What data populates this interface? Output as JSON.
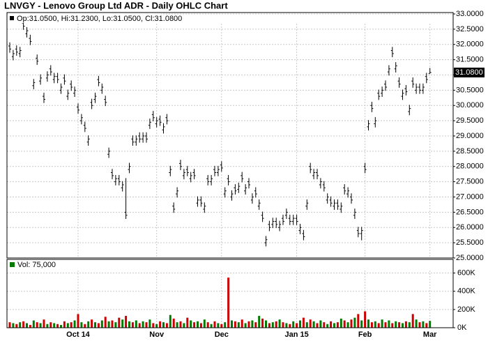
{
  "chart_data": [
    {
      "type": "ohlc",
      "title": "LNVGY - Lenovo Group Ltd ADR - Daily OHLC Chart",
      "subtitle": "Op:31.0500, Hi:31.2300, Lo:31.0500, Cl:31.0800",
      "color": "#000000",
      "grid": true,
      "categories": [
        null,
        null,
        null,
        null,
        null,
        null,
        null,
        null,
        null,
        null,
        null,
        null,
        null,
        null,
        null,
        null,
        null,
        null,
        null,
        null,
        "Oct 14",
        null,
        null,
        null,
        null,
        null,
        null,
        null,
        null,
        null,
        null,
        null,
        null,
        null,
        null,
        null,
        null,
        null,
        null,
        null,
        null,
        null,
        null,
        "Nov",
        null,
        null,
        null,
        null,
        null,
        null,
        null,
        null,
        null,
        null,
        null,
        null,
        null,
        null,
        null,
        null,
        null,
        null,
        "Dec",
        null,
        null,
        null,
        null,
        null,
        null,
        null,
        null,
        null,
        null,
        null,
        null,
        null,
        null,
        null,
        null,
        null,
        null,
        null,
        null,
        null,
        "Jan 15",
        null,
        null,
        null,
        null,
        null,
        null,
        null,
        null,
        null,
        null,
        null,
        null,
        null,
        null,
        null,
        null,
        null,
        null,
        null,
        "Feb",
        null,
        null,
        null,
        null,
        null,
        null,
        null,
        null,
        null,
        null,
        null,
        null,
        null,
        null,
        null,
        null,
        null,
        null,
        "Mar"
      ],
      "open": [
        31.95,
        31.6,
        31.85,
        31.7,
        32.7,
        32.35,
        32.2,
        30.65,
        31.55,
        30.8,
        30.3,
        30.9,
        31.2,
        30.85,
        30.95,
        30.5,
        30.9,
        30.3,
        30.7,
        30.4,
        29.95,
        29.5,
        29.35,
        28.8,
        30.1,
        30.2,
        30.85,
        30.5,
        30.2,
        28.4,
        27.8,
        27.5,
        27.6,
        27.3,
        26.5,
        27.9,
        28.9,
        28.8,
        29.0,
        28.9,
        29.0,
        29.35,
        29.7,
        29.4,
        29.55,
        29.2,
        29.6,
        27.8,
        26.7,
        27.1,
        28.1,
        27.7,
        27.9,
        27.6,
        27.8,
        26.8,
        26.9,
        26.6,
        27.6,
        27.5,
        27.9,
        27.8,
        28.05,
        27.1,
        27.6,
        27.0,
        27.3,
        27.25,
        27.7,
        27.2,
        27.5,
        26.9,
        27.2,
        26.7,
        26.4,
        25.5,
        26.1,
        26.1,
        26.2,
        26.0,
        26.3,
        26.4,
        26.3,
        26.2,
        26.3,
        25.9,
        25.8,
        26.7,
        28.0,
        27.7,
        27.8,
        27.4,
        27.4,
        26.9,
        26.9,
        26.7,
        26.8,
        26.6,
        27.3,
        27.1,
        27.0,
        26.4,
        25.9,
        25.8,
        28.0,
        29.3,
        30.0,
        29.4,
        30.4,
        30.4,
        30.7,
        31.1,
        31.8,
        31.2,
        30.8,
        30.3,
        30.55,
        29.8,
        30.8,
        30.5,
        30.6,
        30.5,
        30.95,
        31.05
      ],
      "high": [
        32.07,
        31.82,
        31.97,
        31.92,
        32.82,
        32.57,
        32.32,
        30.87,
        31.67,
        31.02,
        30.42,
        31.12,
        31.32,
        31.07,
        31.07,
        30.72,
        31.02,
        30.52,
        30.82,
        30.62,
        30.07,
        29.72,
        29.47,
        29.02,
        30.22,
        30.42,
        30.97,
        30.72,
        30.32,
        28.62,
        27.92,
        27.72,
        27.72,
        27.52,
        27.62,
        28.12,
        29.02,
        29.02,
        29.12,
        29.12,
        29.12,
        29.57,
        29.82,
        29.62,
        29.67,
        29.42,
        29.72,
        28.02,
        26.82,
        27.32,
        28.22,
        27.92,
        28.02,
        27.82,
        27.92,
        27.02,
        27.02,
        26.82,
        27.72,
        27.72,
        28.02,
        28.02,
        28.17,
        27.32,
        27.72,
        27.22,
        27.42,
        27.47,
        27.82,
        27.42,
        27.62,
        27.12,
        27.32,
        26.92,
        26.52,
        25.72,
        26.22,
        26.32,
        26.32,
        26.22,
        26.42,
        26.62,
        26.42,
        26.42,
        26.42,
        26.12,
        25.92,
        26.92,
        28.12,
        27.92,
        27.92,
        27.62,
        27.52,
        27.12,
        27.02,
        26.92,
        26.92,
        26.82,
        27.42,
        27.32,
        27.12,
        26.62,
        26.02,
        26.02,
        28.12,
        29.52,
        30.12,
        29.62,
        30.52,
        30.62,
        30.82,
        31.32,
        31.92,
        31.42,
        30.92,
        30.52,
        30.67,
        30.02,
        30.92,
        30.72,
        30.72,
        30.72,
        31.07,
        31.23
      ],
      "low": [
        31.73,
        31.48,
        31.63,
        31.58,
        32.48,
        32.23,
        31.98,
        30.53,
        31.33,
        30.68,
        30.08,
        30.78,
        30.98,
        30.73,
        30.73,
        30.38,
        30.68,
        30.18,
        30.48,
        30.28,
        29.73,
        29.38,
        29.13,
        28.68,
        29.88,
        30.08,
        30.63,
        30.38,
        29.98,
        28.28,
        27.58,
        27.38,
        27.38,
        27.18,
        26.28,
        27.78,
        28.68,
        28.68,
        28.78,
        28.78,
        28.78,
        29.23,
        29.48,
        29.28,
        29.33,
        29.08,
        29.38,
        27.68,
        26.48,
        26.98,
        27.88,
        27.58,
        27.68,
        27.48,
        27.58,
        26.68,
        26.68,
        26.48,
        27.38,
        27.38,
        27.68,
        27.68,
        27.83,
        26.98,
        27.38,
        26.88,
        27.08,
        27.13,
        27.48,
        27.08,
        27.28,
        26.78,
        26.98,
        26.58,
        26.18,
        25.38,
        25.88,
        25.98,
        25.98,
        25.88,
        26.08,
        26.28,
        26.08,
        26.08,
        26.08,
        25.78,
        25.58,
        26.58,
        27.78,
        27.58,
        27.58,
        27.28,
        27.18,
        26.78,
        26.68,
        26.58,
        26.58,
        26.48,
        27.08,
        26.98,
        26.78,
        26.28,
        25.68,
        25.58,
        27.78,
        29.18,
        29.78,
        29.28,
        30.18,
        30.28,
        30.48,
        30.98,
        31.58,
        31.08,
        30.58,
        30.18,
        30.33,
        29.68,
        30.58,
        30.38,
        30.38,
        30.38,
        30.73,
        31.05
      ],
      "close": [
        31.85,
        31.7,
        31.75,
        31.8,
        32.6,
        32.45,
        32.1,
        30.75,
        31.45,
        30.9,
        30.2,
        31.0,
        31.1,
        30.95,
        30.85,
        30.6,
        30.8,
        30.4,
        30.6,
        30.5,
        29.85,
        29.6,
        29.25,
        28.9,
        30.0,
        30.3,
        30.75,
        30.6,
        30.1,
        28.5,
        27.7,
        27.6,
        27.5,
        27.4,
        26.4,
        28.0,
        28.8,
        28.9,
        28.9,
        29.0,
        28.9,
        29.45,
        29.6,
        29.5,
        29.45,
        29.3,
        29.5,
        27.9,
        26.6,
        27.2,
        28.0,
        27.8,
        27.8,
        27.7,
        27.7,
        26.9,
        26.8,
        26.7,
        27.5,
        27.6,
        27.8,
        27.9,
        27.95,
        27.2,
        27.5,
        27.1,
        27.2,
        27.35,
        27.6,
        27.3,
        27.4,
        27.0,
        27.1,
        26.8,
        26.3,
        25.6,
        26.0,
        26.2,
        26.1,
        26.1,
        26.2,
        26.5,
        26.2,
        26.3,
        26.2,
        26.0,
        25.7,
        26.8,
        27.9,
        27.8,
        27.7,
        27.5,
        27.3,
        27.0,
        26.8,
        26.8,
        26.7,
        26.7,
        27.2,
        27.2,
        26.9,
        26.5,
        25.8,
        25.9,
        27.9,
        29.4,
        29.9,
        29.5,
        30.3,
        30.5,
        30.6,
        31.2,
        31.7,
        31.3,
        30.7,
        30.4,
        30.45,
        29.9,
        30.7,
        30.6,
        30.5,
        30.6,
        30.85,
        31.08
      ],
      "ylim": [
        25,
        33
      ],
      "yticks": [
        {
          "value": 25,
          "label": "25.0000"
        },
        {
          "value": 25.5,
          "label": "25.5000"
        },
        {
          "value": 26,
          "label": "26.0000"
        },
        {
          "value": 26.5,
          "label": "26.5000"
        },
        {
          "value": 27,
          "label": "27.0000"
        },
        {
          "value": 27.5,
          "label": "27.5000"
        },
        {
          "value": 28,
          "label": "28.0000"
        },
        {
          "value": 28.5,
          "label": "28.5000"
        },
        {
          "value": 29,
          "label": "29.0000"
        },
        {
          "value": 29.5,
          "label": "29.5000"
        },
        {
          "value": 30,
          "label": "30.0000"
        },
        {
          "value": 30.5,
          "label": "30.5000"
        },
        {
          "value": 31,
          "label": "31.0000"
        },
        {
          "value": 31.5,
          "label": "31.5000"
        },
        {
          "value": 32,
          "label": "32.0000"
        },
        {
          "value": 32.5,
          "label": "32.5000"
        },
        {
          "value": 33,
          "label": "33.0000"
        }
      ],
      "last_price": {
        "value": 31.08,
        "label": "31.0800"
      }
    },
    {
      "type": "bar",
      "title": "Vol: 75,000",
      "up_color": "#007a00",
      "down_color": "#cc0000",
      "grid": true,
      "values": [
        60000,
        50000,
        40000,
        60000,
        70000,
        50000,
        30000,
        80000,
        60000,
        50000,
        90000,
        40000,
        60000,
        50000,
        40000,
        30000,
        70000,
        50000,
        60000,
        80000,
        150000,
        60000,
        40000,
        70000,
        90000,
        60000,
        50000,
        80000,
        120000,
        70000,
        80000,
        60000,
        110000,
        90000,
        130000,
        70000,
        60000,
        80000,
        50000,
        70000,
        60000,
        90000,
        50000,
        40000,
        70000,
        60000,
        50000,
        140000,
        100000,
        60000,
        70000,
        50000,
        110000,
        80000,
        60000,
        70000,
        50000,
        90000,
        60000,
        40000,
        70000,
        50000,
        40000,
        60000,
        550000,
        80000,
        70000,
        60000,
        90000,
        50000,
        70000,
        80000,
        60000,
        130000,
        100000,
        80000,
        50000,
        60000,
        70000,
        90000,
        60000,
        50000,
        40000,
        70000,
        50000,
        80000,
        110000,
        60000,
        90000,
        70000,
        50000,
        80000,
        60000,
        40000,
        70000,
        50000,
        60000,
        100000,
        80000,
        60000,
        90000,
        110000,
        150000,
        80000,
        180000,
        90000,
        60000,
        70000,
        50000,
        90000,
        60000,
        80000,
        50000,
        70000,
        60000,
        50000,
        70000,
        60000,
        150000,
        90000,
        60000,
        70000,
        50000,
        75000
      ],
      "ylim": [
        0,
        750000
      ],
      "yticks": [
        {
          "value": 0,
          "label": "0K"
        },
        {
          "value": 200000,
          "label": "200K"
        },
        {
          "value": 400000,
          "label": "400K"
        },
        {
          "value": 600000,
          "label": "600K"
        }
      ]
    }
  ]
}
